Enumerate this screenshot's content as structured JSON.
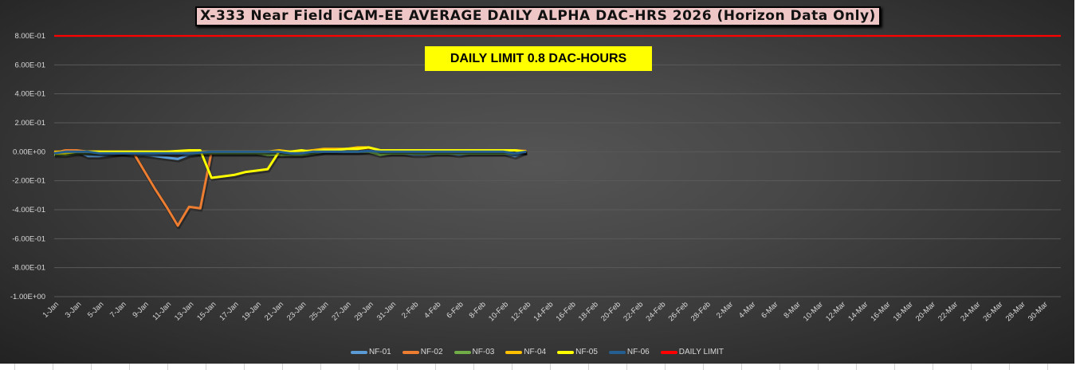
{
  "chart_data": {
    "type": "line",
    "title": "X-333 Near Field iCAM-EE AVERAGE DAILY ALPHA DAC-HRS 2026 (Horizon Data Only)",
    "annotation": "DAILY LIMIT 0.8 DAC-HOURS",
    "xlabel": "",
    "ylabel": "",
    "ylim": [
      -1.0,
      0.8
    ],
    "y_ticks": [
      "8.00E-01",
      "6.00E-01",
      "4.00E-01",
      "2.00E-01",
      "0.00E+00",
      "-2.00E-01",
      "-4.00E-01",
      "-6.00E-01",
      "-8.00E-01",
      "-1.00E+00"
    ],
    "y_tick_values": [
      0.8,
      0.6,
      0.4,
      0.2,
      0,
      -0.2,
      -0.4,
      -0.6,
      -0.8,
      -1.0
    ],
    "x_range_days": 89,
    "x_tick_labels": [
      "1-Jan",
      "3-Jan",
      "5-Jan",
      "7-Jan",
      "9-Jan",
      "11-Jan",
      "13-Jan",
      "15-Jan",
      "17-Jan",
      "19-Jan",
      "21-Jan",
      "23-Jan",
      "25-Jan",
      "27-Jan",
      "29-Jan",
      "31-Jan",
      "2-Feb",
      "4-Feb",
      "6-Feb",
      "8-Feb",
      "10-Feb",
      "12-Feb",
      "14-Feb",
      "16-Feb",
      "18-Feb",
      "20-Feb",
      "22-Feb",
      "24-Feb",
      "26-Feb",
      "28-Feb",
      "2-Mar",
      "4-Mar",
      "6-Mar",
      "8-Mar",
      "10-Mar",
      "12-Mar",
      "14-Mar",
      "16-Mar",
      "18-Mar",
      "20-Mar",
      "22-Mar",
      "24-Mar",
      "26-Mar",
      "28-Mar",
      "30-Mar"
    ],
    "x_start": "1-Jan",
    "grid": true,
    "legend": "bottom",
    "series": [
      {
        "name": "NF-01",
        "color": "#5b9bd5",
        "values": [
          -0.01,
          0,
          0.005,
          -0.03,
          -0.03,
          -0.02,
          -0.01,
          -0.02,
          -0.02,
          -0.03,
          -0.04,
          -0.05,
          -0.02,
          -0.01,
          -0.01,
          -0.01,
          -0.01,
          -0.01,
          -0.01,
          -0.01,
          -0.02,
          -0.02,
          -0.02,
          -0.01,
          0,
          0,
          0,
          0,
          0.01,
          -0.01,
          -0.01,
          -0.01,
          -0.02,
          -0.02,
          -0.01,
          -0.01,
          -0.02,
          -0.01,
          -0.01,
          -0.01,
          -0.01,
          -0.03,
          0
        ]
      },
      {
        "name": "NF-02",
        "color": "#ed7d31",
        "values": [
          -0.01,
          0.01,
          0.01,
          0,
          0,
          -0.01,
          -0.01,
          0,
          -0.13,
          -0.26,
          -0.38,
          -0.51,
          -0.38,
          -0.39,
          0,
          0,
          0,
          0,
          0,
          0,
          0,
          0,
          0,
          0.01,
          0.01,
          0.01,
          0.02,
          0.02,
          0.02,
          0.01,
          0.01,
          0.01,
          0,
          0,
          0.01,
          0.01,
          0.01,
          0.01,
          0.01,
          0.01,
          0.01,
          0.01,
          0.005
        ]
      },
      {
        "name": "NF-03",
        "color": "#70ad47",
        "values": [
          -0.02,
          -0.02,
          -0.01,
          -0.01,
          -0.01,
          -0.01,
          -0.01,
          -0.01,
          -0.01,
          -0.01,
          -0.01,
          -0.01,
          -0.01,
          -0.01,
          -0.01,
          -0.01,
          -0.01,
          -0.01,
          -0.01,
          -0.02,
          -0.02,
          -0.02,
          -0.02,
          -0.01,
          0,
          0,
          0,
          0,
          0,
          -0.02,
          -0.01,
          -0.01,
          -0.01,
          -0.01,
          -0.01,
          -0.01,
          -0.01,
          -0.01,
          -0.01,
          -0.01,
          -0.01,
          -0.01,
          0
        ]
      },
      {
        "name": "NF-04",
        "color": "#ffc000",
        "values": [
          0,
          0,
          0,
          0,
          0,
          0,
          0,
          0,
          0,
          0,
          0,
          0,
          0,
          0,
          0,
          0,
          0,
          0,
          0,
          0,
          0.01,
          0,
          0,
          0.01,
          0.02,
          0.02,
          0.02,
          0.03,
          0.03,
          0.01,
          0.01,
          0.01,
          0.01,
          0.01,
          0.01,
          0.01,
          0.01,
          0.01,
          0.01,
          0.01,
          0.01,
          0.01,
          0
        ]
      },
      {
        "name": "NF-05",
        "color": "#ffff00",
        "values": [
          -0.01,
          -0.01,
          0,
          0,
          0,
          0,
          0,
          0,
          0,
          0,
          0,
          0.005,
          0.01,
          0.01,
          -0.18,
          -0.17,
          -0.16,
          -0.14,
          -0.13,
          -0.12,
          0,
          0,
          0.01,
          0,
          0.01,
          0.01,
          0.02,
          0.02,
          0.03,
          0.01,
          0.01,
          0.01,
          0.01,
          0.01,
          0.01,
          0.01,
          0.01,
          0.01,
          0.01,
          0.01,
          0.01,
          0.01,
          0
        ]
      },
      {
        "name": "NF-06",
        "color": "#255e91",
        "values": [
          -0.01,
          0,
          0,
          0,
          -0.01,
          -0.01,
          -0.01,
          -0.01,
          -0.01,
          -0.01,
          -0.01,
          -0.01,
          -0.01,
          -0.005,
          0,
          0,
          0,
          0,
          0,
          0,
          0,
          -0.01,
          -0.01,
          0,
          0,
          0,
          0,
          0,
          0.005,
          0,
          0,
          0,
          0,
          0,
          0,
          0,
          0,
          0,
          0,
          0,
          0,
          -0.01,
          0
        ]
      },
      {
        "name": "DAILY LIMIT",
        "color": "#ff0000",
        "constant": 0.8
      }
    ]
  }
}
